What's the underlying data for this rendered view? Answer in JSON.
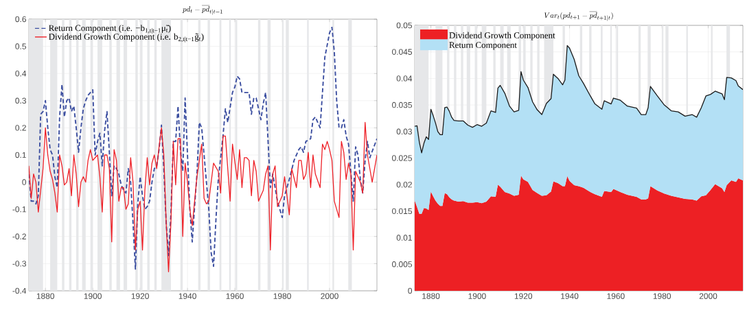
{
  "chart_data": [
    {
      "type": "line",
      "title": "pd_t - \\overline{pd}_{t|t-1}",
      "xlim": [
        1873,
        2020
      ],
      "ylim": [
        -0.4,
        0.6
      ],
      "xticks": [
        1880,
        1900,
        1920,
        1940,
        1960,
        1980,
        2000
      ],
      "yticks": [
        -0.4,
        -0.3,
        -0.2,
        -0.1,
        0,
        0.1,
        0.2,
        0.3,
        0.4,
        0.5,
        0.6
      ],
      "grid": true,
      "legend": "top left",
      "bands": [
        {
          "axis": "x",
          "from": 1873,
          "to": 1879,
          "color": "#e6e7e9"
        },
        {
          "axis": "x",
          "from": 1882,
          "to": 1885,
          "color": "#e6e7e9"
        },
        {
          "axis": "x",
          "from": 1887,
          "to": 1888,
          "color": "#e6e7e9"
        },
        {
          "axis": "x",
          "from": 1890,
          "to": 1891,
          "color": "#e6e7e9"
        },
        {
          "axis": "x",
          "from": 1893,
          "to": 1894,
          "color": "#e6e7e9"
        },
        {
          "axis": "x",
          "from": 1895.5,
          "to": 1897,
          "color": "#e6e7e9"
        },
        {
          "axis": "x",
          "from": 1899,
          "to": 1900,
          "color": "#e6e7e9"
        },
        {
          "axis": "x",
          "from": 1902,
          "to": 1904,
          "color": "#e6e7e9"
        },
        {
          "axis": "x",
          "from": 1907,
          "to": 1908,
          "color": "#e6e7e9"
        },
        {
          "axis": "x",
          "from": 1910,
          "to": 1911.5,
          "color": "#e6e7e9"
        },
        {
          "axis": "x",
          "from": 1913,
          "to": 1914.5,
          "color": "#e6e7e9"
        },
        {
          "axis": "x",
          "from": 1918,
          "to": 1919,
          "color": "#e6e7e9"
        },
        {
          "axis": "x",
          "from": 1920,
          "to": 1921,
          "color": "#e6e7e9"
        },
        {
          "axis": "x",
          "from": 1923,
          "to": 1924,
          "color": "#e6e7e9"
        },
        {
          "axis": "x",
          "from": 1926,
          "to": 1927,
          "color": "#e6e7e9"
        },
        {
          "axis": "x",
          "from": 1929,
          "to": 1933,
          "color": "#e6e7e9"
        },
        {
          "axis": "x",
          "from": 1937,
          "to": 1938,
          "color": "#e6e7e9"
        },
        {
          "axis": "x",
          "from": 1944.5,
          "to": 1945.5,
          "color": "#e6e7e9"
        },
        {
          "axis": "x",
          "from": 1948.5,
          "to": 1949.5,
          "color": "#e6e7e9"
        },
        {
          "axis": "x",
          "from": 1953.5,
          "to": 1954.3,
          "color": "#e6e7e9"
        },
        {
          "axis": "x",
          "from": 1957.6,
          "to": 1958.3,
          "color": "#e6e7e9"
        },
        {
          "axis": "x",
          "from": 1960.2,
          "to": 1961,
          "color": "#e6e7e9"
        },
        {
          "axis": "x",
          "from": 1969.8,
          "to": 1970.8,
          "color": "#e6e7e9"
        },
        {
          "axis": "x",
          "from": 1973.8,
          "to": 1975.1,
          "color": "#e6e7e9"
        },
        {
          "axis": "x",
          "from": 1980,
          "to": 1980.6,
          "color": "#e6e7e9"
        },
        {
          "axis": "x",
          "from": 1981.5,
          "to": 1982.8,
          "color": "#e6e7e9"
        },
        {
          "axis": "x",
          "from": 1990.5,
          "to": 1991.2,
          "color": "#e6e7e9"
        },
        {
          "axis": "x",
          "from": 2001.2,
          "to": 2001.9,
          "color": "#e6e7e9"
        },
        {
          "axis": "x",
          "from": 2007.9,
          "to": 2009.4,
          "color": "#e6e7e9"
        }
      ],
      "series": [
        {
          "name": "Return Component (i.e. −b$_{1,t|t−1}$μ̃$_{t}$)",
          "color": "#3b4ea0",
          "line_style": "dashed",
          "x": [
            1873,
            1874,
            1875,
            1876,
            1877,
            1878,
            1879,
            1880,
            1881,
            1882,
            1883,
            1884,
            1885,
            1886,
            1887,
            1888,
            1889,
            1890,
            1891,
            1892,
            1893,
            1894,
            1895,
            1896,
            1897,
            1898,
            1899,
            1900,
            1901,
            1902,
            1903,
            1904,
            1905,
            1906,
            1907,
            1908,
            1909,
            1910,
            1911,
            1912,
            1913,
            1914,
            1915,
            1916,
            1917,
            1918,
            1919,
            1920,
            1921,
            1922,
            1923,
            1924,
            1925,
            1926,
            1927,
            1928,
            1929,
            1930,
            1931,
            1932,
            1933,
            1934,
            1935,
            1936,
            1937,
            1938,
            1939,
            1940,
            1941,
            1942,
            1943,
            1944,
            1945,
            1946,
            1948,
            1949,
            1950,
            1951,
            1952,
            1953,
            1955,
            1956,
            1957,
            1959,
            1960,
            1961,
            1962,
            1963,
            1965,
            1966,
            1967,
            1968,
            1969,
            1971,
            1972,
            1973,
            1975,
            1976,
            1978,
            1980,
            1981,
            1983,
            1985,
            1987,
            1988,
            1989,
            1990,
            1992,
            1993,
            1994,
            1996,
            1997,
            1998,
            2000,
            2001,
            2002,
            2003,
            2004,
            2005,
            2006,
            2007,
            2008,
            2010,
            2011,
            2012,
            2013,
            2014,
            2015,
            2016,
            2017,
            2020
          ],
          "values": [
            0.03,
            -0.07,
            -0.07,
            -0.08,
            -0.05,
            0.25,
            0.26,
            0.3,
            0.2,
            0.12,
            0.1,
            0.02,
            -0.02,
            0.24,
            0.36,
            0.24,
            0.3,
            0.31,
            0.26,
            0.28,
            0.2,
            0.11,
            0.2,
            0.27,
            0.3,
            0.32,
            0.33,
            0.34,
            0.1,
            0.15,
            0.18,
            0.06,
            0.19,
            0.26,
            0.11,
            -0.05,
            0.06,
            0.05,
            0.03,
            -0.01,
            -0.03,
            -0.04,
            0.05,
            0.0,
            -0.15,
            -0.32,
            -0.08,
            0.02,
            -0.05,
            -0.1,
            -0.09,
            -0.07,
            0.0,
            0.05,
            0.06,
            0.12,
            0.21,
            0.05,
            -0.15,
            -0.27,
            -0.12,
            0.15,
            0.15,
            0.28,
            0.12,
            0.04,
            0.31,
            0.1,
            -0.1,
            -0.22,
            -0.09,
            0.03,
            0.22,
            0.2,
            0.0,
            -0.1,
            -0.26,
            -0.31,
            -0.14,
            0.01,
            0.17,
            0.27,
            0.22,
            0.33,
            0.35,
            0.39,
            0.38,
            0.33,
            0.33,
            0.33,
            0.25,
            0.31,
            0.31,
            0.23,
            0.29,
            0.33,
            -0.02,
            0.03,
            -0.07,
            -0.13,
            -0.05,
            0.01,
            0.08,
            0.12,
            0.13,
            0.11,
            0.15,
            0.16,
            0.23,
            0.24,
            0.2,
            0.33,
            0.46,
            0.55,
            0.57,
            0.48,
            0.3,
            0.2,
            0.2,
            0.23,
            0.17,
            0.14,
            -0.07,
            0.13,
            0.1,
            0.01,
            -0.04,
            0.08,
            0.15,
            0.09,
            0.16
          ]
        },
        {
          "name": "Dividend Growth Component (i.e. b$_{2,t|t−1}$g̃$_{t}$)",
          "color": "#ee2027",
          "line_style": "solid",
          "x": [
            1873,
            1874,
            1875,
            1876,
            1877,
            1878,
            1879,
            1880,
            1881,
            1882,
            1883,
            1884,
            1885,
            1886,
            1887,
            1888,
            1889,
            1890,
            1891,
            1892,
            1893,
            1894,
            1895,
            1896,
            1897,
            1898,
            1899,
            1900,
            1901,
            1902,
            1903,
            1904,
            1905,
            1906,
            1907,
            1908,
            1909,
            1910,
            1911,
            1912,
            1913,
            1914,
            1915,
            1916,
            1917,
            1918,
            1919,
            1920,
            1921,
            1922,
            1923,
            1924,
            1925,
            1926,
            1927,
            1928,
            1929,
            1930,
            1931,
            1932,
            1933,
            1934,
            1935,
            1936,
            1937,
            1938,
            1939,
            1940,
            1941,
            1942,
            1944,
            1946,
            1947,
            1948,
            1949,
            1951,
            1953,
            1954,
            1955,
            1956,
            1958,
            1959,
            1961,
            1962,
            1963,
            1964,
            1965,
            1966,
            1967,
            1968,
            1969,
            1970,
            1972,
            1973,
            1974,
            1975,
            1976,
            1977,
            1978,
            1980,
            1981,
            1983,
            1984,
            1986,
            1987,
            1988,
            1989,
            1990,
            1991,
            1992,
            1993,
            1994,
            1996,
            1997,
            1998,
            1999,
            2000,
            2001,
            2002,
            2004,
            2005,
            2006,
            2007,
            2008,
            2009,
            2010,
            2011,
            2013,
            2014,
            2015,
            2016,
            2018,
            2020
          ],
          "values": [
            0.06,
            -0.06,
            0.03,
            0.0,
            -0.11,
            -0.03,
            0.05,
            0.2,
            0.1,
            0.04,
            0.01,
            -0.04,
            -0.11,
            0.1,
            0.06,
            -0.01,
            0.0,
            0.05,
            -0.05,
            0.1,
            0.03,
            -0.09,
            0.0,
            0.02,
            0.0,
            0.08,
            0.12,
            0.08,
            0.09,
            0.1,
            0.02,
            -0.11,
            0.1,
            0.1,
            0.05,
            -0.22,
            0.12,
            0.08,
            -0.07,
            -0.02,
            -0.02,
            -0.1,
            -0.08,
            0.09,
            0.0,
            -0.25,
            -0.1,
            -0.07,
            -0.25,
            -0.03,
            0.09,
            -0.01,
            0.07,
            0.1,
            0.05,
            0.13,
            0.2,
            0.1,
            -0.15,
            -0.33,
            -0.15,
            0.15,
            -0.01,
            0.16,
            0.16,
            -0.2,
            0.07,
            0.0,
            -0.1,
            -0.16,
            0.02,
            0.14,
            -0.06,
            -0.08,
            -0.07,
            0.07,
            0.04,
            -0.04,
            0.17,
            0.17,
            -0.07,
            0.14,
            0.01,
            0.12,
            -0.02,
            0.09,
            0.09,
            0.08,
            -0.05,
            0.08,
            0.04,
            -0.07,
            -0.03,
            0.03,
            0.06,
            -0.25,
            0.03,
            0.06,
            -0.09,
            -0.05,
            0.02,
            -0.12,
            0.05,
            -0.02,
            0.08,
            0.08,
            0.01,
            0.03,
            0.11,
            -0.02,
            0.1,
            0.03,
            -0.02,
            0.14,
            0.12,
            0.15,
            0.12,
            0.08,
            -0.07,
            -0.13,
            0.15,
            0.11,
            0.01,
            0.07,
            0.03,
            -0.25,
            0.04,
            0.0,
            -0.04,
            0.22,
            0.1,
            0.0,
            0.1
          ]
        }
      ]
    },
    {
      "type": "area",
      "stacked": true,
      "title": "Var_t(pd_{t+1} - \\overline{pd}_{t+1|t})",
      "xlim": [
        1873,
        2015
      ],
      "ylim": [
        0,
        0.05
      ],
      "xticks": [
        1880,
        1900,
        1920,
        1940,
        1960,
        1980,
        2000
      ],
      "yticks": [
        0,
        0.005,
        0.01,
        0.015,
        0.02,
        0.025,
        0.03,
        0.035,
        0.04,
        0.045,
        0.05
      ],
      "grid": true,
      "legend": "top left",
      "bands": [
        {
          "axis": "x",
          "from": 1873,
          "to": 1879,
          "color": "#e6e7e9"
        },
        {
          "axis": "x",
          "from": 1882,
          "to": 1885,
          "color": "#e6e7e9"
        },
        {
          "axis": "x",
          "from": 1887,
          "to": 1888,
          "color": "#e6e7e9"
        },
        {
          "axis": "x",
          "from": 1890,
          "to": 1891,
          "color": "#e6e7e9"
        },
        {
          "axis": "x",
          "from": 1893,
          "to": 1894,
          "color": "#e6e7e9"
        },
        {
          "axis": "x",
          "from": 1895.5,
          "to": 1897,
          "color": "#e6e7e9"
        },
        {
          "axis": "x",
          "from": 1899,
          "to": 1900,
          "color": "#e6e7e9"
        },
        {
          "axis": "x",
          "from": 1902,
          "to": 1904,
          "color": "#e6e7e9"
        },
        {
          "axis": "x",
          "from": 1907,
          "to": 1908,
          "color": "#e6e7e9"
        },
        {
          "axis": "x",
          "from": 1910,
          "to": 1911.5,
          "color": "#e6e7e9"
        },
        {
          "axis": "x",
          "from": 1913,
          "to": 1914.5,
          "color": "#e6e7e9"
        },
        {
          "axis": "x",
          "from": 1918,
          "to": 1919,
          "color": "#e6e7e9"
        },
        {
          "axis": "x",
          "from": 1920,
          "to": 1921,
          "color": "#e6e7e9"
        },
        {
          "axis": "x",
          "from": 1923,
          "to": 1924,
          "color": "#e6e7e9"
        },
        {
          "axis": "x",
          "from": 1926,
          "to": 1927,
          "color": "#e6e7e9"
        },
        {
          "axis": "x",
          "from": 1929,
          "to": 1933,
          "color": "#e6e7e9"
        },
        {
          "axis": "x",
          "from": 1937,
          "to": 1938,
          "color": "#e6e7e9"
        },
        {
          "axis": "x",
          "from": 1944.5,
          "to": 1945.5,
          "color": "#e6e7e9"
        },
        {
          "axis": "x",
          "from": 1948.5,
          "to": 1949.5,
          "color": "#e6e7e9"
        },
        {
          "axis": "x",
          "from": 1953.5,
          "to": 1954.3,
          "color": "#e6e7e9"
        },
        {
          "axis": "x",
          "from": 1957.6,
          "to": 1958.3,
          "color": "#e6e7e9"
        },
        {
          "axis": "x",
          "from": 1960.2,
          "to": 1961,
          "color": "#e6e7e9"
        },
        {
          "axis": "x",
          "from": 1969.8,
          "to": 1970.8,
          "color": "#e6e7e9"
        },
        {
          "axis": "x",
          "from": 1973.8,
          "to": 1975.1,
          "color": "#e6e7e9"
        },
        {
          "axis": "x",
          "from": 1980,
          "to": 1980.6,
          "color": "#e6e7e9"
        },
        {
          "axis": "x",
          "from": 1981.5,
          "to": 1982.8,
          "color": "#e6e7e9"
        },
        {
          "axis": "x",
          "from": 1990.5,
          "to": 1991.2,
          "color": "#e6e7e9"
        },
        {
          "axis": "x",
          "from": 2001.2,
          "to": 2001.9,
          "color": "#e6e7e9"
        },
        {
          "axis": "x",
          "from": 2007.9,
          "to": 2009.4,
          "color": "#e6e7e9"
        }
      ],
      "x": [
        1873,
        1874,
        1875,
        1876,
        1877,
        1878,
        1879,
        1880,
        1881,
        1882,
        1883,
        1884,
        1885,
        1886,
        1887,
        1888,
        1889,
        1890,
        1892,
        1894,
        1896,
        1898,
        1900,
        1902,
        1904,
        1906,
        1908,
        1909,
        1910,
        1912,
        1914,
        1916,
        1918,
        1919,
        1920,
        1922,
        1924,
        1926,
        1928,
        1930,
        1932,
        1933,
        1935,
        1937,
        1938,
        1939,
        1940,
        1942,
        1944,
        1946,
        1949,
        1951,
        1954,
        1955,
        1958,
        1959,
        1962,
        1965,
        1969,
        1971,
        1973,
        1974,
        1975,
        1978,
        1981,
        1984,
        1987,
        1990,
        1993,
        1995,
        1997,
        1999,
        2001,
        2003,
        2006,
        2007,
        2008,
        2010,
        2012,
        2013,
        2015
      ],
      "series": [
        {
          "name": "Dividend Growth Component",
          "color": "#ed2024",
          "values": [
            0.017,
            0.0158,
            0.0145,
            0.0145,
            0.0156,
            0.0155,
            0.0152,
            0.0187,
            0.0178,
            0.017,
            0.0164,
            0.016,
            0.016,
            0.0184,
            0.0182,
            0.0176,
            0.0172,
            0.017,
            0.0168,
            0.0169,
            0.0166,
            0.0166,
            0.0167,
            0.0165,
            0.0168,
            0.0178,
            0.0177,
            0.02,
            0.0196,
            0.0186,
            0.0183,
            0.0179,
            0.0181,
            0.0217,
            0.021,
            0.0205,
            0.019,
            0.0184,
            0.0179,
            0.018,
            0.0187,
            0.0206,
            0.0203,
            0.0197,
            0.0197,
            0.0216,
            0.0207,
            0.0199,
            0.0197,
            0.0194,
            0.0186,
            0.0182,
            0.0177,
            0.0188,
            0.0186,
            0.0192,
            0.0186,
            0.0181,
            0.0177,
            0.0172,
            0.0172,
            0.0174,
            0.0197,
            0.0189,
            0.0183,
            0.0179,
            0.0176,
            0.0173,
            0.0172,
            0.017,
            0.0178,
            0.018,
            0.019,
            0.0201,
            0.0193,
            0.0186,
            0.0199,
            0.0208,
            0.0205,
            0.0212,
            0.0208
          ]
        },
        {
          "name": "Return Component",
          "color": "#b3e0f5",
          "values": [
            0.014,
            0.0153,
            0.0135,
            0.0115,
            0.0122,
            0.0135,
            0.0133,
            0.0155,
            0.0152,
            0.0146,
            0.0136,
            0.0134,
            0.0134,
            0.0161,
            0.0164,
            0.0162,
            0.0155,
            0.0151,
            0.0152,
            0.0151,
            0.0146,
            0.0142,
            0.0146,
            0.0145,
            0.0148,
            0.0161,
            0.0159,
            0.0182,
            0.0191,
            0.0186,
            0.0165,
            0.0158,
            0.0159,
            0.0196,
            0.0187,
            0.0178,
            0.0166,
            0.0157,
            0.0153,
            0.0173,
            0.0175,
            0.0202,
            0.0197,
            0.0191,
            0.02,
            0.0246,
            0.025,
            0.0237,
            0.0208,
            0.0197,
            0.0181,
            0.017,
            0.0165,
            0.017,
            0.0166,
            0.0171,
            0.0173,
            0.0167,
            0.0167,
            0.016,
            0.016,
            0.0171,
            0.0188,
            0.0178,
            0.0167,
            0.016,
            0.0161,
            0.0156,
            0.016,
            0.0157,
            0.0167,
            0.0187,
            0.018,
            0.0175,
            0.0178,
            0.0174,
            0.0203,
            0.0193,
            0.0191,
            0.0174,
            0.0171
          ]
        }
      ]
    },
    {
      "type": "line",
      "xlim": [
        1873,
        2015
      ],
      "ylim": [
        0,
        0.05
      ],
      "tick_labels": false,
      "x": [
        1873,
        1874,
        1875,
        1876,
        1877,
        1878,
        1879,
        1880,
        1881,
        1882,
        1883,
        1884,
        1885,
        1886,
        1887,
        1888,
        1889,
        1890,
        1892,
        1894,
        1896,
        1898,
        1900,
        1902,
        1904,
        1906,
        1908,
        1909,
        1910,
        1912,
        1914,
        1916,
        1918,
        1919,
        1920,
        1922,
        1924,
        1926,
        1928,
        1930,
        1932,
        1933,
        1935,
        1937,
        1938,
        1939,
        1940,
        1942,
        1944,
        1946,
        1949,
        1951,
        1954,
        1955,
        1958,
        1959,
        1962,
        1965,
        1969,
        1971,
        1973,
        1974,
        1975,
        1978,
        1981,
        1984,
        1987,
        1990,
        1993,
        1995,
        1997,
        1999,
        2001,
        2003,
        2006,
        2007,
        2008,
        2010,
        2012,
        2013,
        2015
      ],
      "series": [
        {
          "color": "#1a1a1a",
          "values": [
            0.031,
            0.0311,
            0.028,
            0.026,
            0.0278,
            0.029,
            0.0285,
            0.0342,
            0.033,
            0.0316,
            0.03,
            0.0294,
            0.0294,
            0.0345,
            0.0346,
            0.0338,
            0.0327,
            0.0321,
            0.032,
            0.032,
            0.0312,
            0.0308,
            0.0313,
            0.031,
            0.0316,
            0.0339,
            0.0336,
            0.0382,
            0.0387,
            0.0372,
            0.0348,
            0.0337,
            0.034,
            0.0413,
            0.0397,
            0.0383,
            0.0356,
            0.0341,
            0.0332,
            0.0353,
            0.0362,
            0.0408,
            0.04,
            0.0388,
            0.0397,
            0.0462,
            0.0457,
            0.0436,
            0.0405,
            0.0391,
            0.0367,
            0.0352,
            0.0342,
            0.0358,
            0.0352,
            0.0363,
            0.0359,
            0.0348,
            0.0344,
            0.0332,
            0.0332,
            0.0345,
            0.0385,
            0.0367,
            0.035,
            0.0339,
            0.0337,
            0.0329,
            0.0332,
            0.0327,
            0.0345,
            0.0367,
            0.037,
            0.0376,
            0.0371,
            0.036,
            0.0402,
            0.0401,
            0.0396,
            0.0386,
            0.0379
          ]
        }
      ]
    }
  ]
}
